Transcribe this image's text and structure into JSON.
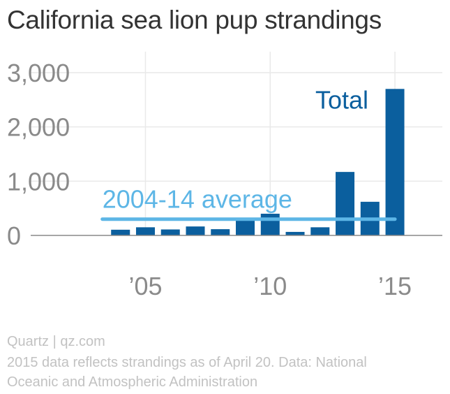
{
  "title": "California sea lion pup strandings",
  "footer": {
    "credit": "Quartz | qz.com",
    "note_line1": "2015 data reflects strandings as of April 20. Data: National",
    "note_line2": "Oceanic and Atmospheric Administration"
  },
  "colors": {
    "bar": "#0b5f9e",
    "average_line": "#5db6e6",
    "total_text": "#0b5f9e",
    "grid": "#e9e9e9",
    "axis": "#888888"
  },
  "chart_data": {
    "type": "bar",
    "x": [
      2004,
      2005,
      2006,
      2007,
      2008,
      2009,
      2010,
      2011,
      2012,
      2013,
      2014,
      2015
    ],
    "values": [
      105,
      150,
      110,
      165,
      115,
      280,
      400,
      65,
      150,
      1170,
      620,
      2700
    ],
    "ylim": [
      0,
      3000
    ],
    "yticks": [
      0,
      1000,
      2000,
      3000
    ],
    "ytick_labels": [
      "0",
      "1,000",
      "2,000",
      "3,000"
    ],
    "xlim": [
      2000.4,
      2016.9
    ],
    "xticks": [
      2005,
      2010,
      2015
    ],
    "xtick_labels": [
      "’05",
      "’10",
      "’15"
    ],
    "average": {
      "label": "2004-14 average",
      "value": 300,
      "x_from": 2004,
      "x_to": 2015
    },
    "annotations": [
      {
        "text": "Total",
        "x": 2015,
        "y": 2700
      }
    ],
    "grid": true
  }
}
